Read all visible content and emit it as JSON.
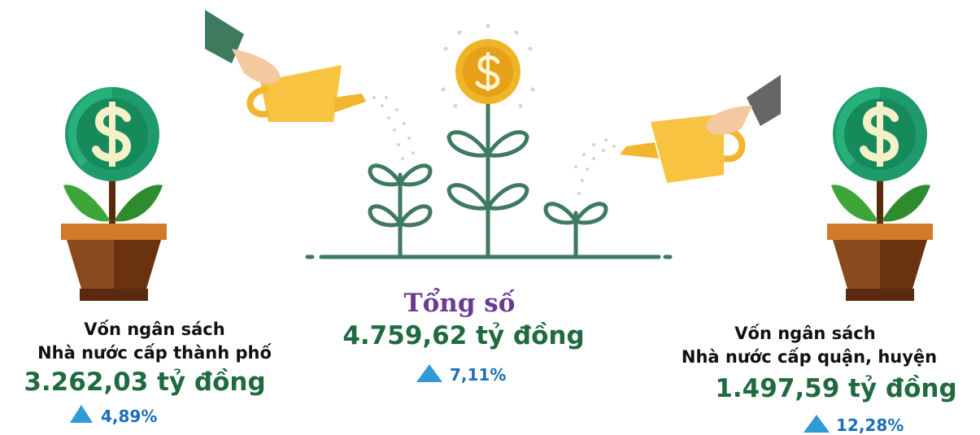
{
  "left": {
    "title": "Vốn ngân sách",
    "subtitle": "Nhà nước cấp thành phố",
    "value": "3.262,03 tỷ đồng",
    "change": "4,89%"
  },
  "center": {
    "title": "Tổng số",
    "value": "4.759,62 tỷ đồng",
    "change": "7,11%"
  },
  "right": {
    "title": "Vốn ngân sách",
    "subtitle": "Nhà nước cấp quận, huyện",
    "value": "1.497,59 tỷ đồng",
    "change": "12,28%"
  }
}
